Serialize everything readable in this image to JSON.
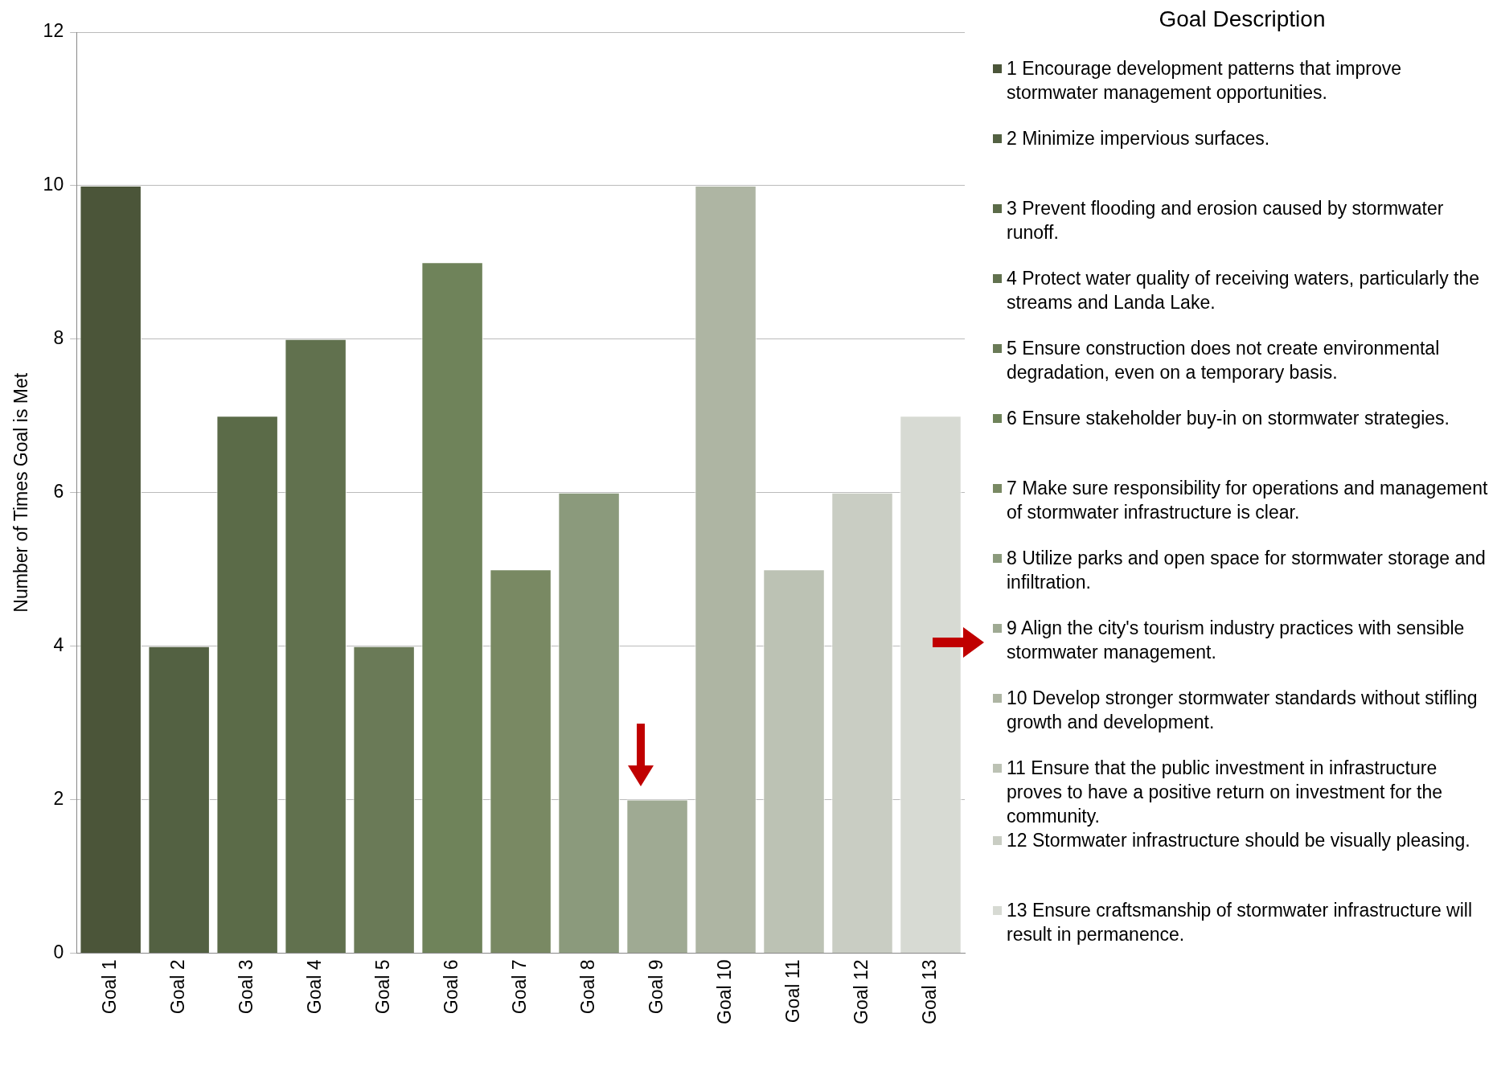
{
  "chart_data": {
    "type": "bar",
    "stacked": true,
    "categories": [
      "Goal 1",
      "Goal 2",
      "Goal 3",
      "Goal 4",
      "Goal 5",
      "Goal 6",
      "Goal 7",
      "Goal 8",
      "Goal 9",
      "Goal 10",
      "Goal 11",
      "Goal 12",
      "Goal 13"
    ],
    "ylabel": "Number of Times Goal is Met",
    "ylim": [
      0,
      12
    ],
    "yticks": [
      0,
      2,
      4,
      6,
      8,
      10,
      12
    ],
    "grid": "y",
    "legend": "right",
    "legend_title": "Goal Description",
    "series": [
      {
        "name": "1 Encourage development patterns that improve stormwater management opportunities.",
        "color": "#4b5539",
        "values": [
          10,
          null,
          null,
          null,
          null,
          null,
          null,
          null,
          null,
          null,
          null,
          null,
          null
        ]
      },
      {
        "name": "2 Minimize impervious surfaces.",
        "color": "#536142",
        "values": [
          null,
          4,
          null,
          null,
          null,
          null,
          null,
          null,
          null,
          null,
          null,
          null,
          null
        ]
      },
      {
        "name": "3 Prevent flooding and erosion caused by stormwater runoff.",
        "color": "#5b6b48",
        "values": [
          null,
          null,
          7,
          null,
          null,
          null,
          null,
          null,
          null,
          null,
          null,
          null,
          null
        ]
      },
      {
        "name": "4 Protect water quality of receiving waters, particularly the streams and Landa Lake.",
        "color": "#61714e",
        "values": [
          null,
          null,
          null,
          8,
          null,
          null,
          null,
          null,
          null,
          null,
          null,
          null,
          null
        ]
      },
      {
        "name": "5 Ensure construction does not create environmental degradation, even on a temporary basis.",
        "color": "#6a7a57",
        "values": [
          null,
          null,
          null,
          null,
          4,
          null,
          null,
          null,
          null,
          null,
          null,
          null,
          null
        ]
      },
      {
        "name": "6 Ensure stakeholder buy-in on stormwater strategies.",
        "color": "#6f835a",
        "values": [
          null,
          null,
          null,
          null,
          null,
          9,
          null,
          null,
          null,
          null,
          null,
          null,
          null
        ]
      },
      {
        "name": "7 Make sure responsibility for operations and management of stormwater infrastructure is clear.",
        "color": "#798963",
        "values": [
          null,
          null,
          null,
          null,
          null,
          null,
          5,
          null,
          null,
          null,
          null,
          null,
          null
        ]
      },
      {
        "name": "8 Utilize parks and open space for stormwater storage and infiltration.",
        "color": "#8b9a7c",
        "values": [
          null,
          null,
          null,
          null,
          null,
          null,
          null,
          6,
          null,
          null,
          null,
          null,
          null
        ]
      },
      {
        "name": "9 Align the city's tourism industry practices with sensible stormwater management.",
        "color": "#9faa93",
        "values": [
          null,
          null,
          null,
          null,
          null,
          null,
          null,
          null,
          2,
          null,
          null,
          null,
          null
        ]
      },
      {
        "name": "10 Develop stronger stormwater standards without stifling growth and development.",
        "color": "#aeb5a3",
        "values": [
          null,
          null,
          null,
          null,
          null,
          null,
          null,
          null,
          null,
          10,
          null,
          null,
          null
        ]
      },
      {
        "name": "11 Ensure that the public investment in infrastructure proves to have a positive return on investment for the community.",
        "color": "#bcc2b4",
        "values": [
          null,
          null,
          null,
          null,
          null,
          null,
          null,
          null,
          null,
          null,
          5,
          null,
          null
        ]
      },
      {
        "name": "12 Stormwater infrastructure should be visually pleasing.",
        "color": "#c9cdc3",
        "values": [
          null,
          null,
          null,
          null,
          null,
          null,
          null,
          null,
          null,
          null,
          null,
          6,
          null
        ]
      },
      {
        "name": "13 Ensure craftsmanship of stormwater infrastructure will result in permanence.",
        "color": "#d7dad3",
        "values": [
          null,
          null,
          null,
          null,
          null,
          null,
          null,
          null,
          null,
          null,
          null,
          null,
          7
        ]
      }
    ]
  }
}
